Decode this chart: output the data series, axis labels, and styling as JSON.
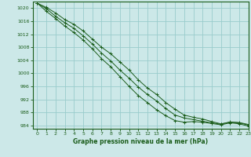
{
  "title": "Graphe pression niveau de la mer (hPa)",
  "bg_color": "#cce8e8",
  "grid_color": "#99cccc",
  "line_color": "#1a5c1a",
  "xlim": [
    -0.5,
    23
  ],
  "ylim": [
    983,
    1022
  ],
  "yticks": [
    984,
    988,
    992,
    996,
    1000,
    1004,
    1008,
    1012,
    1016,
    1020
  ],
  "xticks": [
    0,
    1,
    2,
    3,
    4,
    5,
    6,
    7,
    8,
    9,
    10,
    11,
    12,
    13,
    14,
    15,
    16,
    17,
    18,
    19,
    20,
    21,
    22,
    23
  ],
  "series": [
    [
      1021.5,
      1020.2,
      1018.5,
      1016.5,
      1015.0,
      1013.0,
      1010.5,
      1008.0,
      1006.0,
      1003.5,
      1001.0,
      998.0,
      995.5,
      993.5,
      991.0,
      989.0,
      987.2,
      986.5,
      986.0,
      985.2,
      984.5,
      985.0,
      984.8,
      984.1
    ],
    [
      1021.5,
      1019.8,
      1017.5,
      1015.5,
      1013.8,
      1011.5,
      1009.0,
      1006.2,
      1003.8,
      1001.0,
      998.5,
      995.8,
      993.5,
      991.5,
      989.2,
      987.2,
      986.3,
      985.8,
      985.3,
      984.8,
      984.4,
      985.1,
      984.9,
      984.3
    ],
    [
      1021.5,
      1019.0,
      1016.8,
      1014.5,
      1012.5,
      1010.2,
      1007.5,
      1004.5,
      1002.0,
      999.0,
      996.0,
      993.2,
      991.0,
      988.8,
      987.0,
      985.5,
      985.0,
      985.2,
      985.0,
      984.6,
      984.2,
      984.8,
      984.5,
      983.8
    ]
  ]
}
